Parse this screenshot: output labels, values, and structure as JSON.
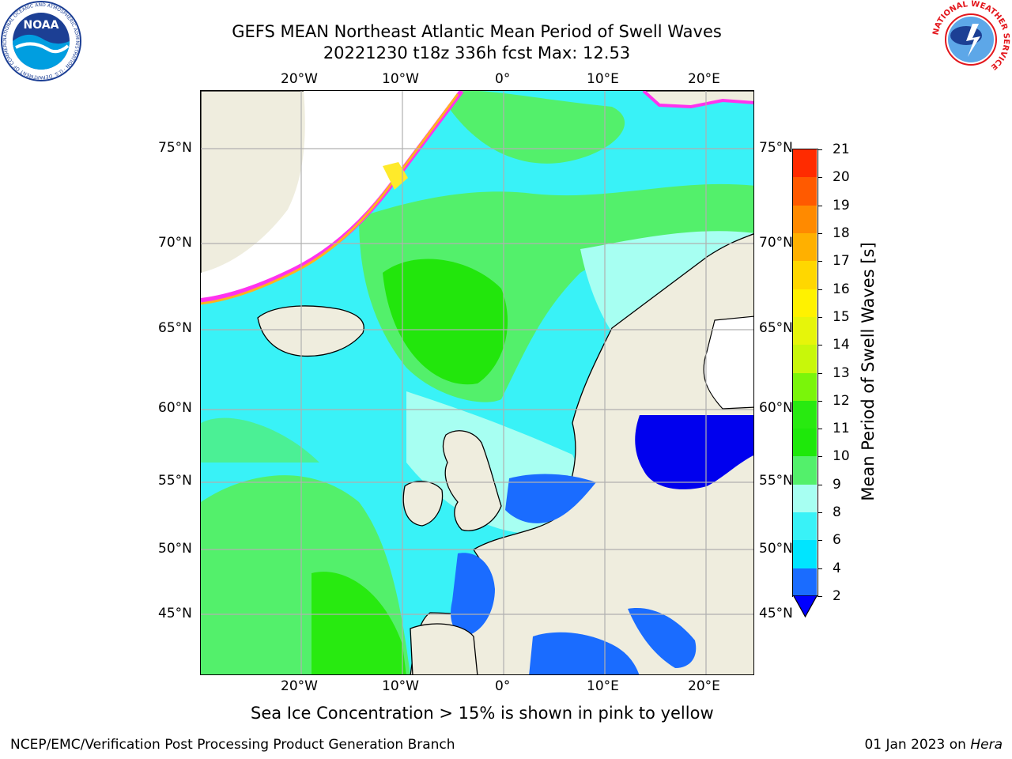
{
  "title": {
    "line1": "GEFS MEAN Northeast Atlantic Mean Period of Swell Waves",
    "line2": "20221230 t18z 336h fcst   Max: 12.53"
  },
  "map": {
    "lon_labels": [
      "20°W",
      "10°W",
      "0°",
      "10°E",
      "20°E"
    ],
    "lat_labels": [
      "75°N",
      "70°N",
      "65°N",
      "60°N",
      "55°N",
      "50°N",
      "45°N"
    ],
    "colors": {
      "land": "#efedde",
      "ocean_cyan": "#39f2f7",
      "ocean_light": "#a7fff2",
      "ocean_green": "#53f06b",
      "ocean_bright_green": "#22e60c",
      "ocean_blue": "#1a6cff",
      "deep_blue": "#0000ee",
      "ice_pink": "#ff33ee",
      "ice_orange": "#ffb21f",
      "ice_yellow": "#ffea2a",
      "grid": "#b0b0b0"
    }
  },
  "colorbar": {
    "label": "Mean Period of Swell Waves [s]",
    "ticks": [
      "21",
      "20",
      "19",
      "18",
      "17",
      "16",
      "15",
      "14",
      "13",
      "12",
      "11",
      "10",
      "9",
      "8",
      "6",
      "4",
      "2"
    ],
    "colors": [
      "#0000ff",
      "#1a6cff",
      "#00e5ff",
      "#39f2f7",
      "#a7fff2",
      "#53f06b",
      "#1ee80a",
      "#28ea10",
      "#7af50a",
      "#c8f70a",
      "#e6f50a",
      "#fff200",
      "#ffd700",
      "#ffb000",
      "#ff8a00",
      "#ff5a00",
      "#ff2b00",
      "#ff1200"
    ]
  },
  "caption": "Sea Ice Concentration > 15% is shown in pink to yellow",
  "footer": {
    "left": "NCEP/EMC/Verification Post Processing Product Generation Branch",
    "right_date": "01 Jan 2023 on ",
    "right_host": "Hera"
  },
  "logos": {
    "noaa": "NOAA",
    "noaa_ring": "NATIONAL OCEANIC AND ATMOSPHERIC ADMINISTRATION · U.S. DEPARTMENT OF COMMERCE",
    "nws_ring": "NATIONAL WEATHER SERVICE"
  }
}
